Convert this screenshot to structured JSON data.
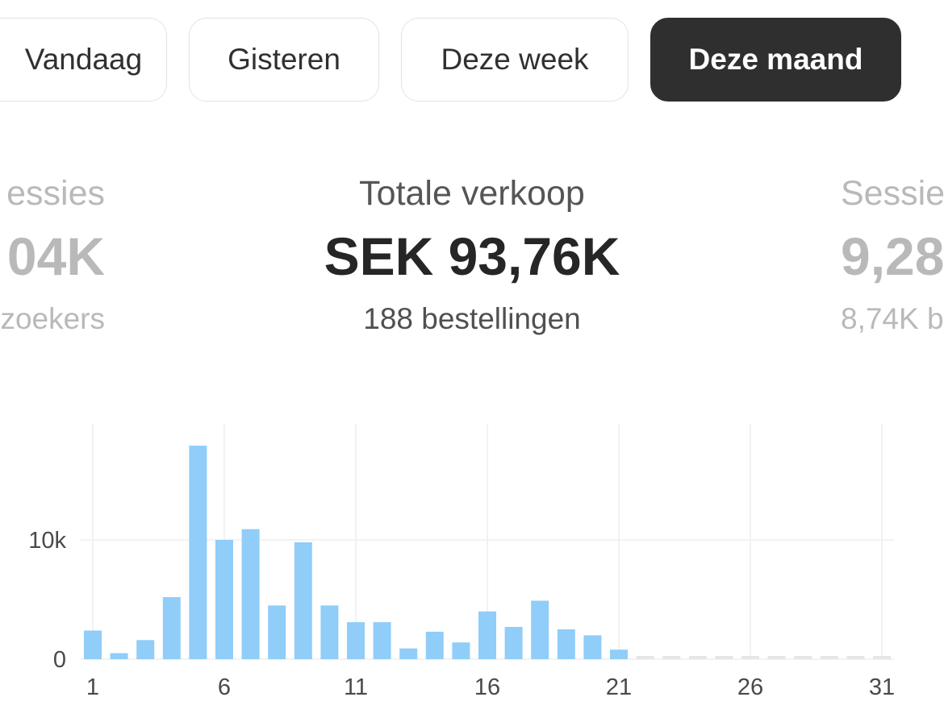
{
  "periods": {
    "items": [
      {
        "label": "Vandaag"
      },
      {
        "label": "Gisteren"
      },
      {
        "label": "Deze week"
      },
      {
        "label": "Deze maand"
      }
    ],
    "selected": "Deze maand"
  },
  "metrics": {
    "left": {
      "label": "essies",
      "value": "04K",
      "sub": "zoekers"
    },
    "center": {
      "label": "Totale verkoop",
      "value": "SEK 93,76K",
      "sub": "188 bestellingen"
    },
    "right": {
      "label": "Sessie",
      "value": "9,28",
      "sub": "8,74K b"
    }
  },
  "colors": {
    "bar": "#90CDF9",
    "empty_bar": "#E6E6E6",
    "grid": "#EEEEEE",
    "active_pill": "#2F2F2F"
  },
  "chart_data": {
    "type": "bar",
    "x": [
      1,
      2,
      3,
      4,
      5,
      6,
      7,
      8,
      9,
      10,
      11,
      12,
      13,
      14,
      15,
      16,
      17,
      18,
      19,
      20,
      21,
      22,
      23,
      24,
      25,
      26,
      27,
      28,
      29,
      30,
      31
    ],
    "values": [
      2400,
      500,
      1600,
      5200,
      17900,
      10000,
      10900,
      4500,
      9800,
      4500,
      3100,
      3100,
      900,
      2300,
      1400,
      4000,
      2700,
      4900,
      2500,
      2000,
      800,
      0,
      0,
      0,
      0,
      0,
      0,
      0,
      0,
      0,
      0
    ],
    "x_tick_labels": [
      "1",
      "6",
      "11",
      "16",
      "21",
      "26",
      "31"
    ],
    "y_tick_labels": [
      "0",
      "10k"
    ],
    "y_ticks": [
      0,
      10000
    ],
    "ylim": [
      0,
      20000
    ],
    "grid": true
  }
}
